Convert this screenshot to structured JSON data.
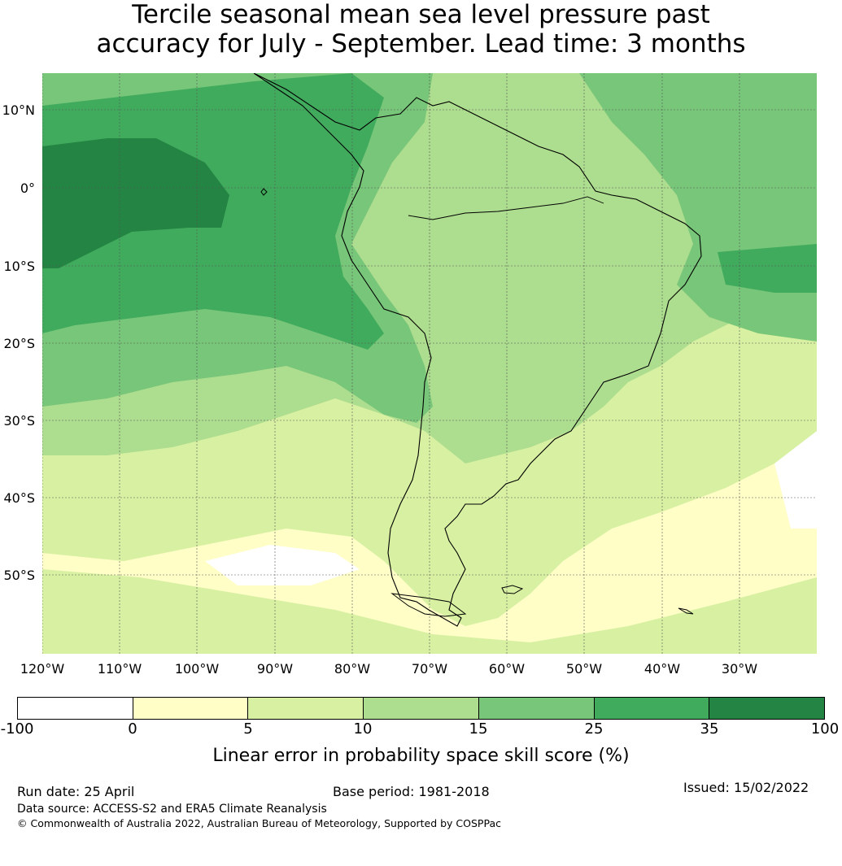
{
  "title": {
    "line1": "Tercile seasonal mean sea level pressure past",
    "line2": "accuracy for July - September. Lead time: 3 months"
  },
  "map": {
    "lat_labels": [
      "10°N",
      "0°",
      "10°S",
      "20°S",
      "30°S",
      "40°S",
      "50°S"
    ],
    "lon_labels": [
      "120°W",
      "110°W",
      "100°W",
      "90°W",
      "80°W",
      "70°W",
      "60°W",
      "50°W",
      "40°W",
      "30°W"
    ]
  },
  "legend": {
    "ticks": [
      "-100",
      "0",
      "5",
      "10",
      "15",
      "25",
      "35",
      "100"
    ],
    "colors": [
      "#ffffff",
      "#fefec6",
      "#d8f0a2",
      "#addd8e",
      "#78c679",
      "#41ab5d",
      "#238443"
    ],
    "label": "Linear error in probability space skill score (%)"
  },
  "footer": {
    "run_date": "Run date: 25 April",
    "base_period": "Base period: 1981-2018",
    "issued": "Issued: 15/02/2022",
    "data_source": "Data source: ACCESS-S2 and ERA5 Climate Reanalysis",
    "copyright": "© Commonwealth of Australia 2022, Australian Bureau of Meteorology, Supported by COSPPac"
  }
}
